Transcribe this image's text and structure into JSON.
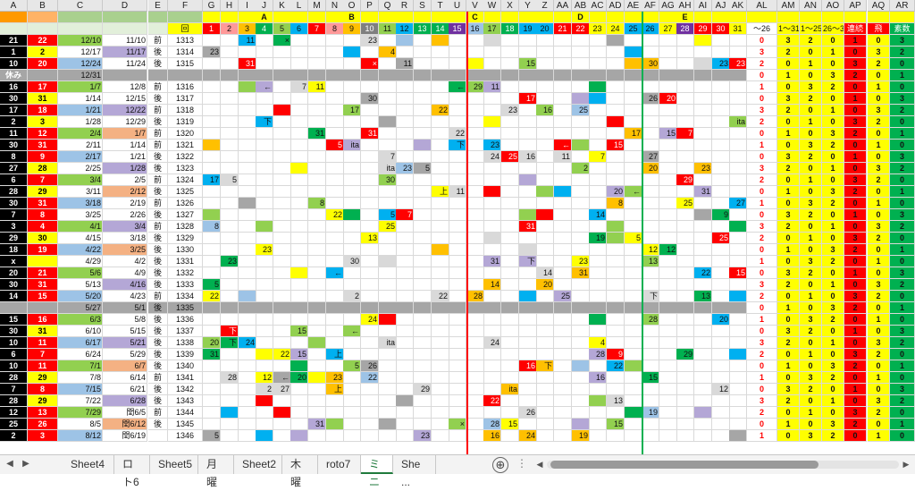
{
  "sheet": {
    "columns": [
      "A",
      "B",
      "C",
      "D",
      "E",
      "F",
      "G",
      "H",
      "I",
      "J",
      "K",
      "L",
      "M",
      "N",
      "O",
      "P",
      "Q",
      "R",
      "S",
      "T",
      "U",
      "V",
      "W",
      "X",
      "Y",
      "Z",
      "AA",
      "AB",
      "AC",
      "AD",
      "AE",
      "AF",
      "AG",
      "AH",
      "AI",
      "AJ",
      "AK",
      "AL",
      "AM",
      "AN",
      "AO",
      "AP",
      "AQ",
      "AR"
    ],
    "group_labels": [
      {
        "text": "A",
        "col": "J"
      },
      {
        "text": "B",
        "col": "O"
      },
      {
        "text": "C",
        "col": "V"
      },
      {
        "text": "D",
        "col": "AB"
      },
      {
        "text": "E",
        "col": "AH"
      }
    ],
    "row2": [
      "",
      "",
      "",
      "",
      "",
      "回",
      "1",
      "2",
      "3",
      "4",
      "5",
      "6",
      "7",
      "8",
      "9",
      "10",
      "11",
      "12",
      "13",
      "14",
      "15",
      "16",
      "17",
      "18",
      "19",
      "20",
      "21",
      "22",
      "23",
      "24",
      "25",
      "26",
      "27",
      "28",
      "29",
      "30",
      "31",
      "〜26",
      "1〜31",
      "1〜25",
      "26〜31",
      "連続",
      "飛",
      "素数"
    ],
    "rows": [
      [
        "21",
        "22",
        "12/10",
        "11/10",
        "前",
        "1313"
      ],
      [
        "1",
        "2",
        "12/17",
        "11/17",
        "後",
        "1314"
      ],
      [
        "10",
        "20",
        "12/24",
        "11/24",
        "後",
        "1315"
      ],
      [
        "休み",
        "",
        "12/31",
        "",
        "",
        ""
      ],
      [
        "16",
        "17",
        "1/7",
        "12/8",
        "前",
        "1316"
      ],
      [
        "30",
        "31",
        "1/14",
        "12/15",
        "後",
        "1317"
      ],
      [
        "17",
        "18",
        "1/21",
        "12/22",
        "前",
        "1318"
      ],
      [
        "2",
        "3",
        "1/28",
        "12/29",
        "後",
        "1319"
      ],
      [
        "11",
        "12",
        "2/4",
        "1/7",
        "前",
        "1320"
      ],
      [
        "30",
        "31",
        "2/11",
        "1/14",
        "前",
        "1321"
      ],
      [
        "8",
        "9",
        "2/17",
        "1/21",
        "後",
        "1322"
      ],
      [
        "27",
        "28",
        "2/25",
        "1/28",
        "後",
        "1323"
      ],
      [
        "6",
        "7",
        "3/4",
        "2/5",
        "前",
        "1324"
      ],
      [
        "28",
        "29",
        "3/11",
        "2/12",
        "後",
        "1325"
      ],
      [
        "30",
        "31",
        "3/18",
        "2/19",
        "前",
        "1326"
      ],
      [
        "7",
        "8",
        "3/25",
        "2/26",
        "後",
        "1327"
      ],
      [
        "3",
        "4",
        "4/1",
        "3/4",
        "前",
        "1328"
      ],
      [
        "29",
        "30",
        "4/15",
        "3/18",
        "後",
        "1329"
      ],
      [
        "18",
        "19",
        "4/22",
        "3/25",
        "後",
        "1330"
      ],
      [
        "x",
        "",
        "4/29",
        "4/2",
        "後",
        "1331"
      ],
      [
        "20",
        "21",
        "5/6",
        "4/9",
        "後",
        "1332"
      ],
      [
        "30",
        "31",
        "5/13",
        "4/16",
        "後",
        "1333"
      ],
      [
        "14",
        "15",
        "5/20",
        "4/23",
        "前",
        "1334"
      ],
      [
        "",
        "",
        "5/27",
        "5/1",
        "後",
        "1335"
      ],
      [
        "15",
        "16",
        "6/3",
        "5/8",
        "後",
        "1336"
      ],
      [
        "30",
        "31",
        "6/10",
        "5/15",
        "後",
        "1337"
      ],
      [
        "10",
        "11",
        "6/17",
        "5/21",
        "後",
        "1338"
      ],
      [
        "6",
        "7",
        "6/24",
        "5/29",
        "後",
        "1339"
      ],
      [
        "10",
        "11",
        "7/1",
        "6/7",
        "後",
        "1340"
      ],
      [
        "28",
        "29",
        "7/8",
        "6/14",
        "前",
        "1341"
      ],
      [
        "7",
        "8",
        "7/15",
        "6/21",
        "後",
        "1342"
      ],
      [
        "28",
        "29",
        "7/22",
        "6/28",
        "後",
        "1343"
      ],
      [
        "12",
        "13",
        "7/29",
        "閏6/5",
        "前",
        "1344"
      ],
      [
        "25",
        "26",
        "8/5",
        "閏6/12",
        "後",
        "1345"
      ],
      [
        "2",
        "3",
        "8/12",
        "閏6/19",
        "",
        "1346"
      ]
    ],
    "marks": [
      "2",
      "5",
      "9",
      "←",
      "15",
      "下",
      "22",
      "20",
      "21",
      "23",
      "下",
      "25",
      "29",
      "30",
      "31",
      "ita",
      "4",
      "7",
      "11",
      "17",
      "23",
      "26",
      "30",
      "31",
      "×",
      "5",
      "8",
      "12",
      "15",
      "16",
      "22",
      "24",
      "27",
      "28",
      "31",
      "←",
      "下",
      "13",
      "14",
      "19",
      "上"
    ],
    "totals": [
      "0",
      "3",
      "2",
      "0",
      "1"
    ]
  },
  "tabs": [
    {
      "label": "Sheet4"
    },
    {
      "label": "ロト6"
    },
    {
      "label": "Sheet5"
    },
    {
      "label": "月曜"
    },
    {
      "label": "Sheet2"
    },
    {
      "label": "木曜"
    },
    {
      "label": "roto7"
    },
    {
      "label": "ミニ"
    },
    {
      "label": "She ..."
    }
  ],
  "active_tab": "ミニ",
  "tabbar": {
    "add_symbol": "⊕",
    "separator": "⋮",
    "nav_prev": "◀",
    "nav_next": "▶"
  },
  "colors": {
    "yellow": "#ffff00",
    "red": "#ff0000",
    "black": "#000000",
    "orange": "#ffc000",
    "green": "#92d050",
    "darkgreen": "#00b050",
    "blue": "#00b0f0",
    "purple": "#7030a0",
    "gray": "#a6a6a6",
    "lightgray": "#d9d9d9",
    "paleblue": "#9dc3e6",
    "lavender": "#b4a7d6"
  }
}
